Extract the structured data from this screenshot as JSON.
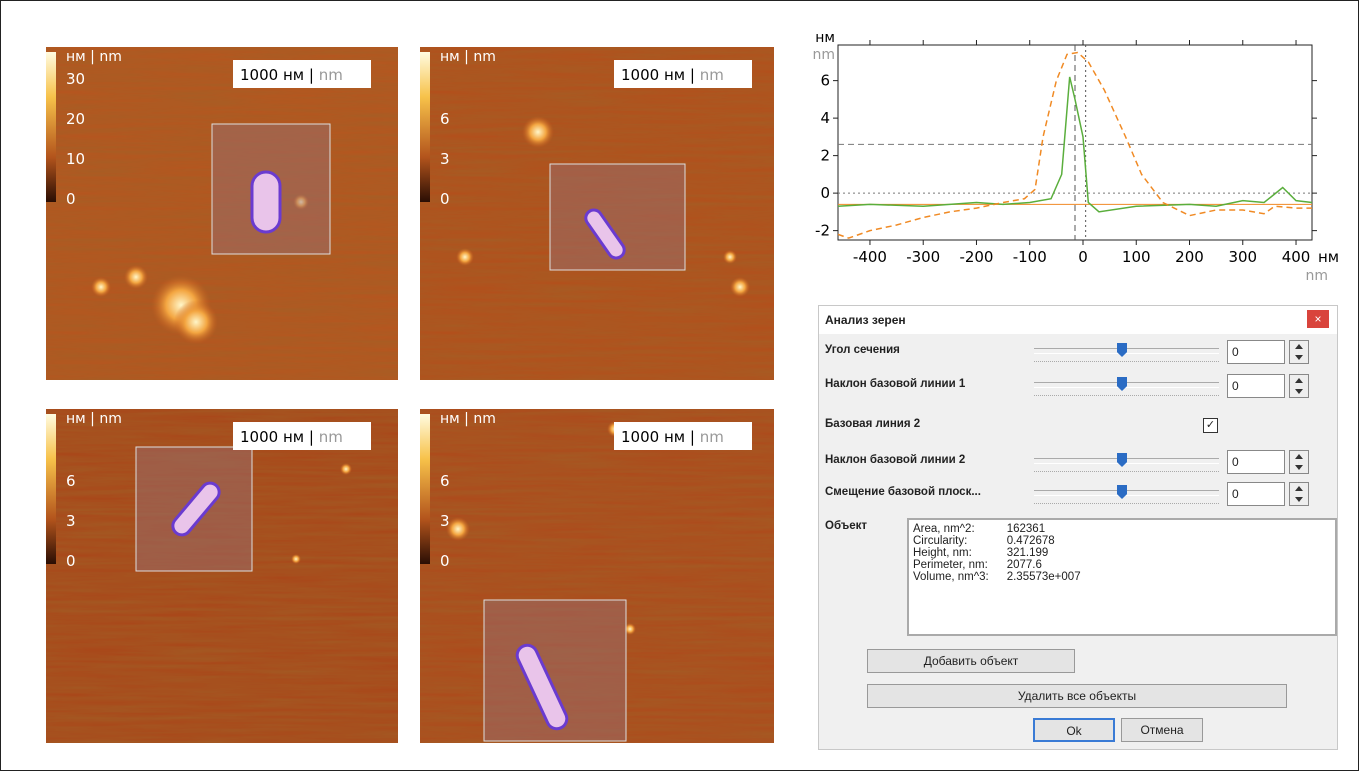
{
  "afm_panels": [
    {
      "unit": "нм | nm",
      "colorbar_ticks": [
        30,
        20,
        10,
        0
      ],
      "scale_bar": {
        "value": "1000 нм",
        "separator": "|",
        "unit_en": "nm"
      }
    },
    {
      "unit": "нм | nm",
      "colorbar_ticks": [
        6,
        3,
        0
      ],
      "scale_bar": {
        "value": "1000 нм",
        "separator": "|",
        "unit_en": "nm"
      }
    },
    {
      "unit": "нм | nm",
      "colorbar_ticks": [
        6,
        3,
        0
      ],
      "scale_bar": {
        "value": "1000 нм",
        "separator": "|",
        "unit_en": "nm"
      }
    },
    {
      "unit": "нм | nm",
      "colorbar_ticks": [
        6,
        3,
        0
      ],
      "scale_bar": {
        "value": "1000 нм",
        "separator": "|",
        "unit_en": "nm"
      }
    }
  ],
  "chart_data": {
    "type": "line",
    "y_label": "нм",
    "y_label_en": "nm",
    "x_label": "нм",
    "x_label_en": "nm",
    "xlim": [
      -460,
      430
    ],
    "ylim": [
      -2.5,
      7.9
    ],
    "xticks": [
      -400,
      -300,
      -200,
      -100,
      0,
      100,
      200,
      300,
      400
    ],
    "yticks": [
      -2,
      0,
      2,
      4,
      6
    ],
    "series": [
      {
        "color": "#5aae3c",
        "style": "solid",
        "x": [
          -460,
          -400,
          -300,
          -200,
          -150,
          -100,
          -60,
          -40,
          -25,
          -15,
          0,
          10,
          30,
          100,
          200,
          250,
          300,
          340,
          375,
          400,
          430
        ],
        "values": [
          -0.7,
          -0.6,
          -0.7,
          -0.5,
          -0.6,
          -0.5,
          -0.3,
          1,
          6.2,
          5,
          3,
          -0.5,
          -1,
          -0.7,
          -0.6,
          -0.7,
          -0.4,
          -0.5,
          0.3,
          -0.4,
          -0.5
        ]
      },
      {
        "color": "#f08a24",
        "style": "dashed",
        "x": [
          -460,
          -440,
          -400,
          -350,
          -300,
          -250,
          -200,
          -150,
          -110,
          -90,
          -75,
          -50,
          -30,
          -10,
          10,
          40,
          80,
          110,
          150,
          200,
          250,
          300,
          340,
          360,
          400,
          430
        ],
        "values": [
          -2.2,
          -2.4,
          -2.0,
          -1.7,
          -1.3,
          -1.0,
          -0.8,
          -0.5,
          -0.3,
          0.2,
          3,
          6,
          7.4,
          7.5,
          7.0,
          5.5,
          3,
          1,
          -0.5,
          -1.2,
          -0.9,
          -0.9,
          -1.1,
          -0.7,
          -0.8,
          -0.8
        ]
      }
    ],
    "hlines": [
      {
        "value": -0.6,
        "color": "#f08a24",
        "style": "solid"
      },
      {
        "value": 2.6,
        "color": "#777",
        "style": "dashed"
      },
      {
        "value": 0,
        "color": "#777",
        "style": "dotted"
      }
    ],
    "vlines": [
      {
        "value": -15,
        "color": "#555",
        "style": "dashed"
      },
      {
        "value": 5,
        "color": "#555",
        "style": "dotted"
      }
    ]
  },
  "dialog": {
    "title": "Анализ зерен",
    "close": "×",
    "sliders": [
      {
        "label": "Угол сечения",
        "value": 0
      },
      {
        "label": "Наклон базовой линии 1",
        "value": 0
      },
      {
        "label": "Наклон базовой линии 2",
        "value": 0
      },
      {
        "label": "Смещение базовой плоск...",
        "value": 0
      }
    ],
    "checkbox": {
      "label": "Базовая линия 2",
      "mark": "✓"
    },
    "object_label": "Объект",
    "properties": [
      [
        "Area, nm^2:",
        "162361"
      ],
      [
        "Circularity:",
        "0.472678"
      ],
      [
        "Height, nm:",
        "321.199"
      ],
      [
        "Perimeter, nm:",
        "2077.6"
      ],
      [
        "Volume, nm^3:",
        "2.35573e+007"
      ]
    ],
    "buttons": {
      "add": "Добавить объект",
      "delete_all": "Удалить все объекты",
      "ok": "Ok",
      "cancel": "Отмена"
    }
  }
}
